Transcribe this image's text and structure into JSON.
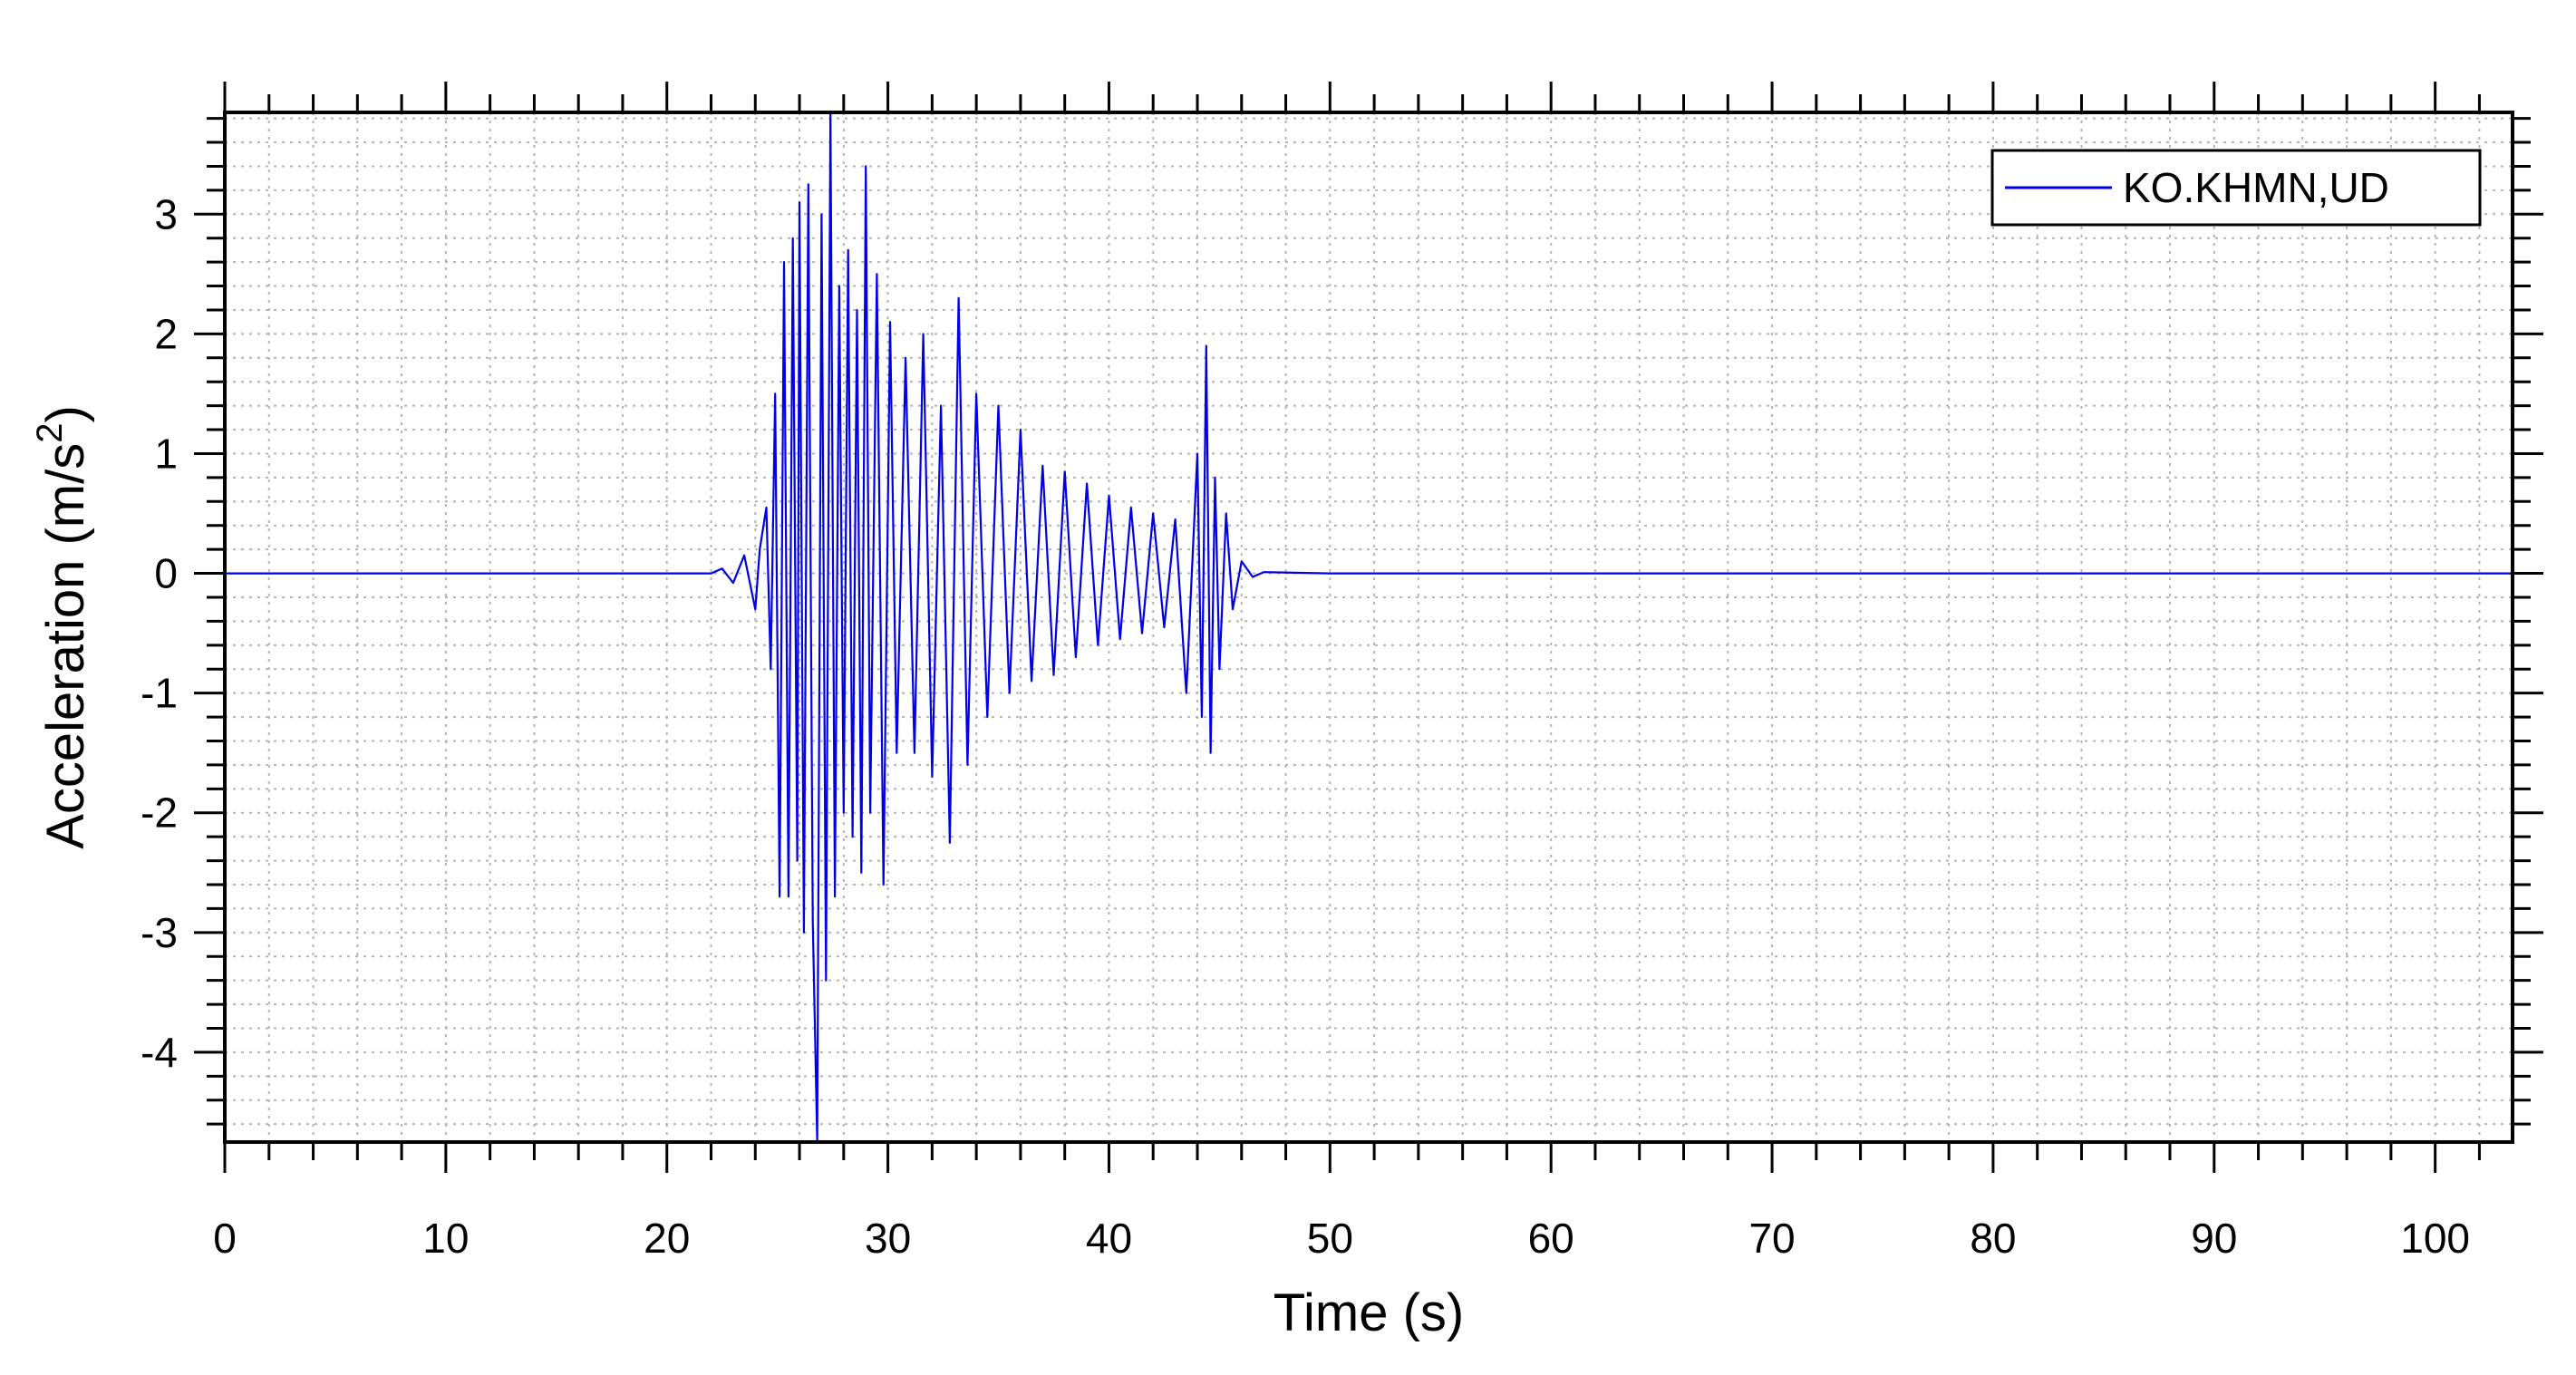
{
  "chart_data": {
    "type": "line",
    "title": "",
    "xlabel": "Time (s)",
    "ylabel": {
      "main": "Acceleration (m/s",
      "superscript": "2",
      "close": ")"
    },
    "xlim": [
      0,
      103.5
    ],
    "ylim": [
      -4.75,
      3.85
    ],
    "xticks": [
      0,
      10,
      20,
      30,
      40,
      50,
      60,
      70,
      80,
      90,
      100
    ],
    "xtick_labels": [
      "0",
      "10",
      "20",
      "30",
      "40",
      "50",
      "60",
      "70",
      "80",
      "90",
      "100"
    ],
    "yticks": [
      3,
      2,
      1,
      0,
      -1,
      -2,
      -3,
      -4
    ],
    "ytick_labels": [
      "3",
      "2",
      "1",
      "0",
      "-1",
      "-2",
      "-3",
      "-4"
    ],
    "grid": true,
    "legend_position": "top-right",
    "colors": {
      "series": "#0000e6",
      "axis": "#000000",
      "grid": "#b4b4b4"
    },
    "series": [
      {
        "name": "KO.KHMN,UD",
        "x": [
          0,
          22.0,
          22.5,
          23.0,
          23.5,
          24.0,
          24.2,
          24.5,
          24.7,
          24.9,
          25.1,
          25.3,
          25.5,
          25.7,
          25.9,
          26.0,
          26.2,
          26.4,
          26.6,
          26.8,
          27.0,
          27.2,
          27.4,
          27.6,
          27.8,
          28.0,
          28.2,
          28.4,
          28.6,
          28.8,
          29.0,
          29.2,
          29.5,
          29.8,
          30.1,
          30.4,
          30.8,
          31.2,
          31.6,
          32.0,
          32.4,
          32.8,
          33.2,
          33.6,
          34.0,
          34.5,
          35.0,
          35.5,
          36.0,
          36.5,
          37.0,
          37.5,
          38.0,
          38.5,
          39.0,
          39.5,
          40.0,
          40.5,
          41.0,
          41.5,
          42.0,
          42.5,
          43.0,
          43.5,
          44.0,
          44.2,
          44.4,
          44.6,
          44.8,
          45.0,
          45.3,
          45.6,
          46.0,
          46.5,
          47.0,
          50.0,
          103.5
        ],
        "y": [
          0,
          0,
          0.04,
          -0.08,
          0.15,
          -0.3,
          0.2,
          0.55,
          -0.8,
          1.5,
          -2.7,
          2.6,
          -2.7,
          2.8,
          -2.4,
          3.1,
          -3.0,
          3.25,
          -2.9,
          -4.75,
          3.0,
          -3.4,
          3.85,
          -2.7,
          2.4,
          -2.0,
          2.7,
          -2.2,
          2.2,
          -2.5,
          3.4,
          -2.0,
          2.5,
          -2.6,
          2.1,
          -1.5,
          1.8,
          -1.5,
          2.0,
          -1.7,
          1.4,
          -2.25,
          2.3,
          -1.6,
          1.5,
          -1.2,
          1.4,
          -1.0,
          1.2,
          -0.9,
          0.9,
          -0.85,
          0.85,
          -0.7,
          0.75,
          -0.6,
          0.65,
          -0.55,
          0.55,
          -0.5,
          0.5,
          -0.45,
          0.45,
          -1.0,
          1.0,
          -1.2,
          1.9,
          -1.5,
          0.8,
          -0.8,
          0.5,
          -0.3,
          0.1,
          -0.03,
          0.01,
          0,
          0
        ]
      }
    ]
  }
}
